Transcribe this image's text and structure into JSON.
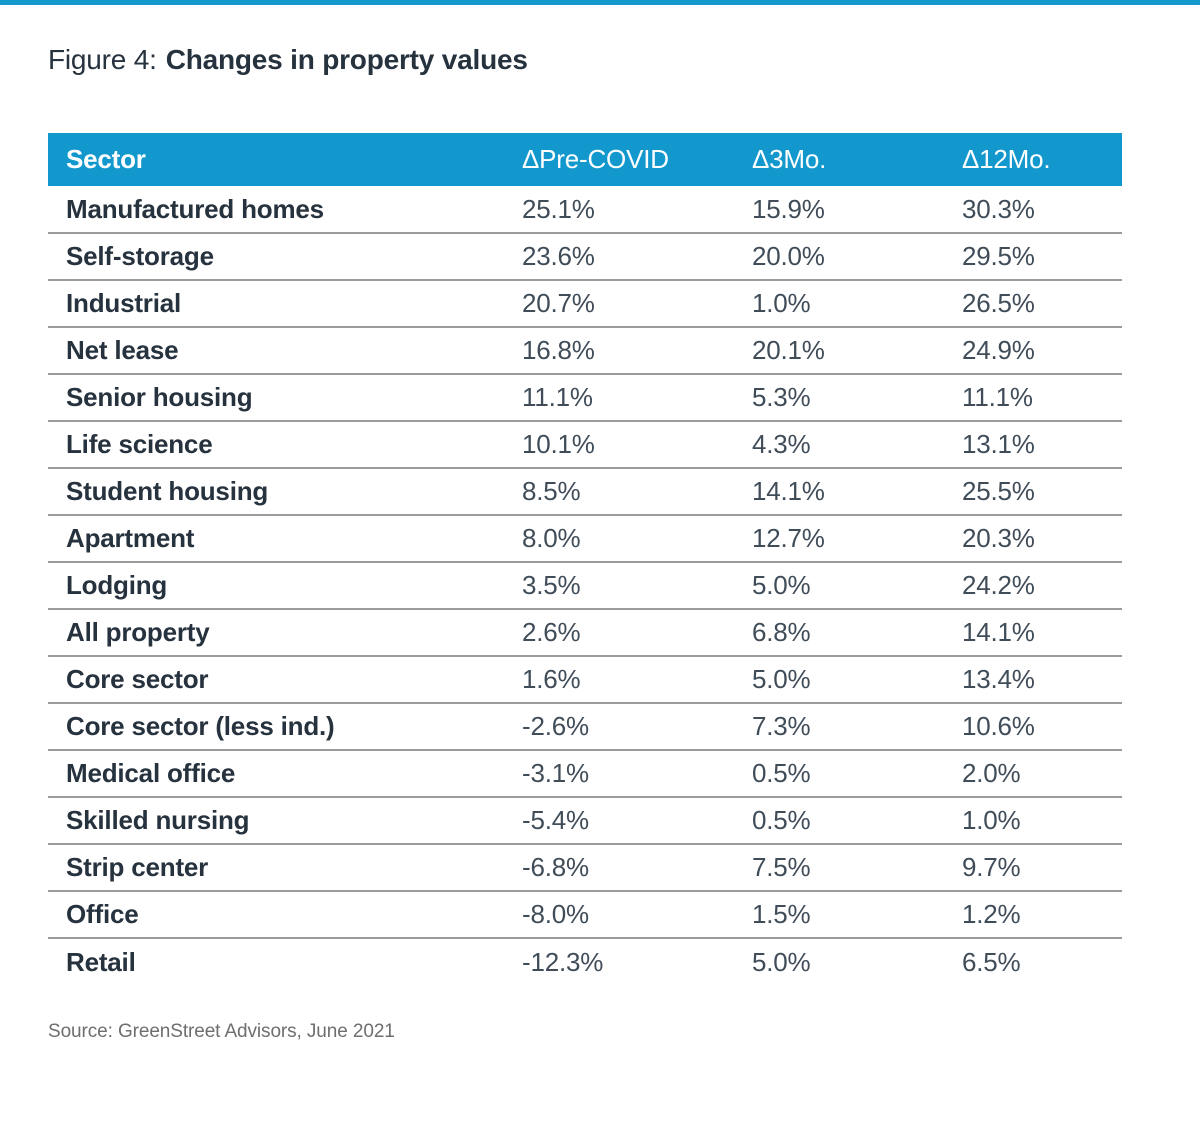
{
  "header": {
    "figure_label": "Figure 4:",
    "title": "Changes in property values"
  },
  "footer": {
    "source": "Source: GreenStreet Advisors, June 2021"
  },
  "colors": {
    "accent": "#1398CE",
    "heading_text": "#26323E",
    "value_text": "#404D59",
    "divider": "#9B9B9B",
    "source_text": "#6E6E6E",
    "header_text": "#FFFFFF"
  },
  "chart_data": {
    "type": "table",
    "title": "Figure 4: Changes in property values",
    "columns": [
      "Sector",
      "ΔPre-COVID",
      "Δ3Mo.",
      "Δ12Mo."
    ],
    "rows": [
      [
        "Manufactured homes",
        "25.1%",
        "15.9%",
        "30.3%"
      ],
      [
        "Self-storage",
        "23.6%",
        "20.0%",
        "29.5%"
      ],
      [
        "Industrial",
        "20.7%",
        "1.0%",
        "26.5%"
      ],
      [
        "Net lease",
        "16.8%",
        "20.1%",
        "24.9%"
      ],
      [
        "Senior housing",
        "11.1%",
        "5.3%",
        "11.1%"
      ],
      [
        "Life science",
        "10.1%",
        "4.3%",
        "13.1%"
      ],
      [
        "Student housing",
        "8.5%",
        "14.1%",
        "25.5%"
      ],
      [
        "Apartment",
        "8.0%",
        "12.7%",
        "20.3%"
      ],
      [
        "Lodging",
        "3.5%",
        "5.0%",
        "24.2%"
      ],
      [
        "All property",
        "2.6%",
        "6.8%",
        "14.1%"
      ],
      [
        "Core sector",
        "1.6%",
        "5.0%",
        "13.4%"
      ],
      [
        "Core sector (less ind.)",
        "-2.6%",
        "7.3%",
        "10.6%"
      ],
      [
        "Medical office",
        "-3.1%",
        "0.5%",
        "2.0%"
      ],
      [
        "Skilled nursing",
        "-5.4%",
        "0.5%",
        "1.0%"
      ],
      [
        "Strip center",
        "-6.8%",
        "7.5%",
        "9.7%"
      ],
      [
        "Office",
        "-8.0%",
        "1.5%",
        "1.2%"
      ],
      [
        "Retail",
        "-12.3%",
        "5.0%",
        "6.5%"
      ]
    ],
    "source": "Source: GreenStreet Advisors, June 2021",
    "layout": {
      "grid": "horizontal row dividers only",
      "header_fill": "#1398CE",
      "value_alignment": "left"
    }
  }
}
